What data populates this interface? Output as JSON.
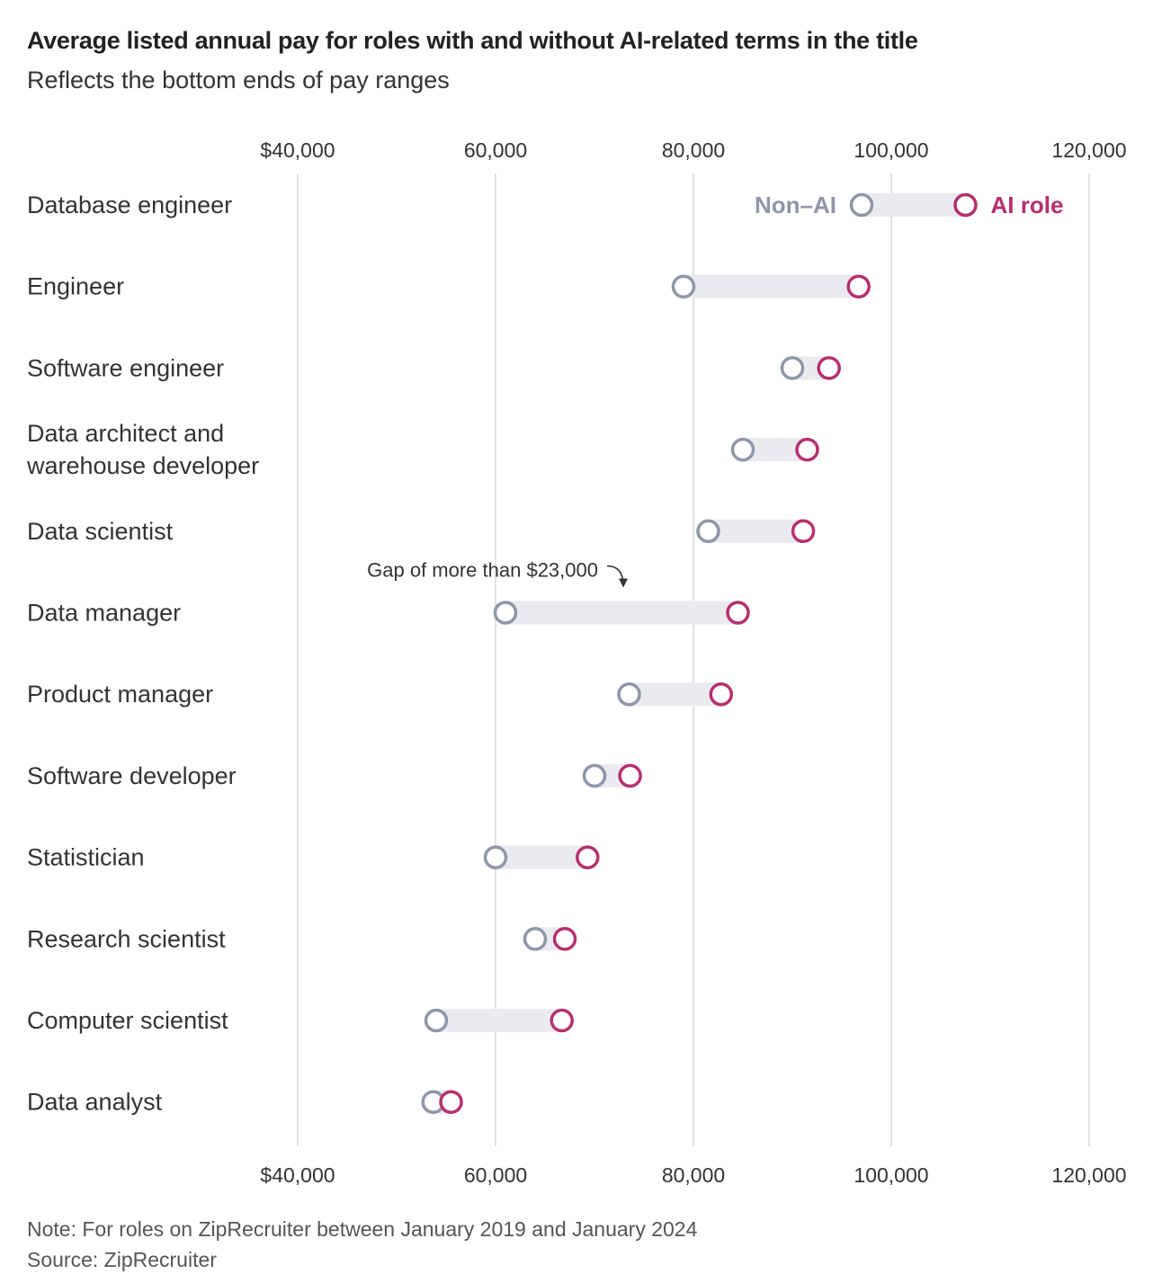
{
  "title": "Average listed annual pay for roles with and without AI-related terms in the title",
  "subtitle": "Reflects the bottom ends of pay ranges",
  "note": "Note: For roles on ZipRecruiter between January 2019 and January 2024",
  "source": "Source: ZipRecruiter",
  "colors": {
    "non_ai": "#8f96a8",
    "ai": "#b5306e",
    "bar": "#e9ebef",
    "grid": "#d9d9d9",
    "label": "#333333"
  },
  "chart_data": {
    "type": "dumbbell",
    "xlim": [
      40000,
      120000
    ],
    "xticks": [
      40000,
      60000,
      80000,
      100000,
      120000
    ],
    "xtick_labels": [
      "$40,000",
      "60,000",
      "80,000",
      "100,000",
      "120,000"
    ],
    "series_names": {
      "non_ai": "Non–AI",
      "ai": "AI role"
    },
    "categories": [
      "Database engineer",
      "Engineer",
      "Software engineer",
      "Data architect and warehouse developer",
      "Data scientist",
      "Data manager",
      "Product manager",
      "Software developer",
      "Statistician",
      "Research scientist",
      "Computer scientist",
      "Data analyst"
    ],
    "category_lines": [
      [
        "Database engineer"
      ],
      [
        "Engineer"
      ],
      [
        "Software engineer"
      ],
      [
        "Data architect and",
        "warehouse developer"
      ],
      [
        "Data scientist"
      ],
      [
        "Data manager"
      ],
      [
        "Product manager"
      ],
      [
        "Software developer"
      ],
      [
        "Statistician"
      ],
      [
        "Research scientist"
      ],
      [
        "Computer scientist"
      ],
      [
        "Data analyst"
      ]
    ],
    "non_ai": [
      97000,
      79000,
      90000,
      85000,
      81500,
      61000,
      73500,
      70000,
      60000,
      64000,
      54000,
      53700
    ],
    "ai": [
      107500,
      96700,
      93700,
      91500,
      91100,
      84500,
      82800,
      73600,
      69300,
      67000,
      66700,
      55500
    ],
    "annotation": {
      "text": "Gap of more than $23,000",
      "category": "Data manager"
    }
  }
}
